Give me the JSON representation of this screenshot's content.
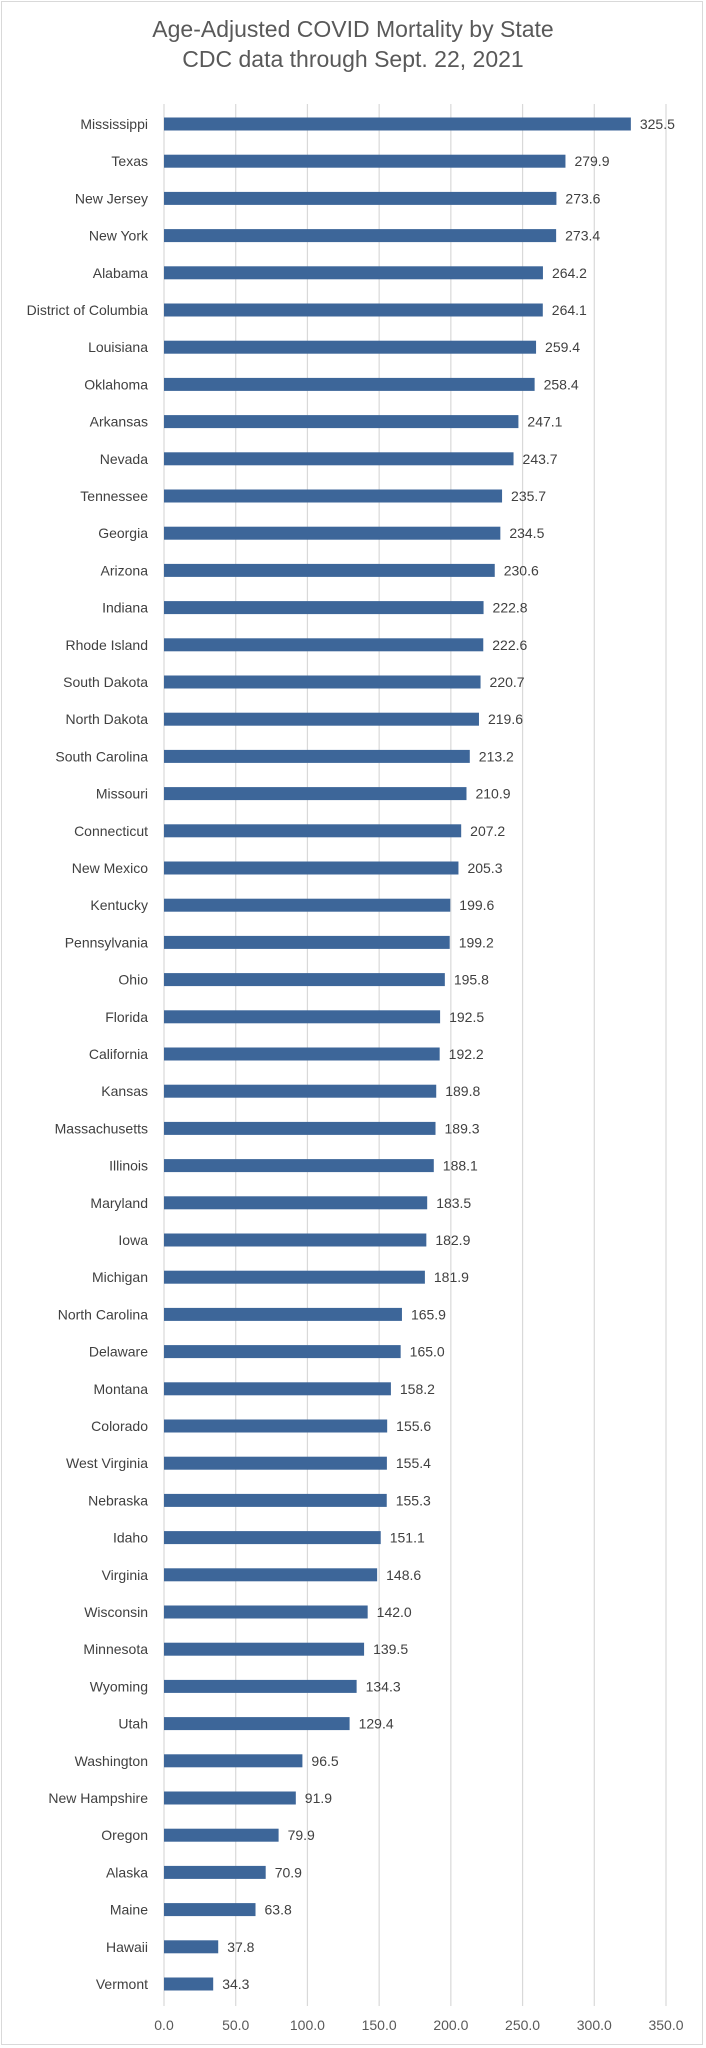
{
  "chart_data": {
    "type": "bar",
    "orientation": "horizontal",
    "title": "Age-Adjusted COVID Mortality by State",
    "subtitle": "CDC data through Sept. 22, 2021",
    "xlabel": "",
    "ylabel": "",
    "xlim": [
      0,
      350
    ],
    "x_ticks": [
      "0.0",
      "50.0",
      "100.0",
      "150.0",
      "200.0",
      "250.0",
      "300.0",
      "350.0"
    ],
    "x_tick_values": [
      0,
      50,
      100,
      150,
      200,
      250,
      300,
      350
    ],
    "grid": true,
    "legend": "none",
    "bar_color": "#3d6699",
    "categories": [
      "Mississippi",
      "Texas",
      "New Jersey",
      "New York",
      "Alabama",
      "District of Columbia",
      "Louisiana",
      "Oklahoma",
      "Arkansas",
      "Nevada",
      "Tennessee",
      "Georgia",
      "Arizona",
      "Indiana",
      "Rhode Island",
      "South Dakota",
      "North Dakota",
      "South Carolina",
      "Missouri",
      "Connecticut",
      "New Mexico",
      "Kentucky",
      "Pennsylvania",
      "Ohio",
      "Florida",
      "California",
      "Kansas",
      "Massachusetts",
      "Illinois",
      "Maryland",
      "Iowa",
      "Michigan",
      "North Carolina",
      "Delaware",
      "Montana",
      "Colorado",
      "West Virginia",
      "Nebraska",
      "Idaho",
      "Virginia",
      "Wisconsin",
      "Minnesota",
      "Wyoming",
      "Utah",
      "Washington",
      "New Hampshire",
      "Oregon",
      "Alaska",
      "Maine",
      "Hawaii",
      "Vermont"
    ],
    "values": [
      325.5,
      279.9,
      273.6,
      273.4,
      264.2,
      264.1,
      259.4,
      258.4,
      247.1,
      243.7,
      235.7,
      234.5,
      230.6,
      222.8,
      222.6,
      220.7,
      219.6,
      213.2,
      210.9,
      207.2,
      205.3,
      199.6,
      199.2,
      195.8,
      192.5,
      192.2,
      189.8,
      189.3,
      188.1,
      183.5,
      182.9,
      181.9,
      165.9,
      165.0,
      158.2,
      155.6,
      155.4,
      155.3,
      151.1,
      148.6,
      142.0,
      139.5,
      134.3,
      129.4,
      96.5,
      91.9,
      79.9,
      70.9,
      63.8,
      37.8,
      34.3
    ],
    "data_labels": [
      "325.5",
      "279.9",
      "273.6",
      "273.4",
      "264.2",
      "264.1",
      "259.4",
      "258.4",
      "247.1",
      "243.7",
      "235.7",
      "234.5",
      "230.6",
      "222.8",
      "222.6",
      "220.7",
      "219.6",
      "213.2",
      "210.9",
      "207.2",
      "205.3",
      "199.6",
      "199.2",
      "195.8",
      "192.5",
      "192.2",
      "189.8",
      "189.3",
      "188.1",
      "183.5",
      "182.9",
      "181.9",
      "165.9",
      "165.0",
      "158.2",
      "155.6",
      "155.4",
      "155.3",
      "151.1",
      "148.6",
      "142.0",
      "139.5",
      "134.3",
      "129.4",
      "96.5",
      "91.9",
      "79.9",
      "70.9",
      "63.8",
      "37.8",
      "34.3"
    ]
  }
}
